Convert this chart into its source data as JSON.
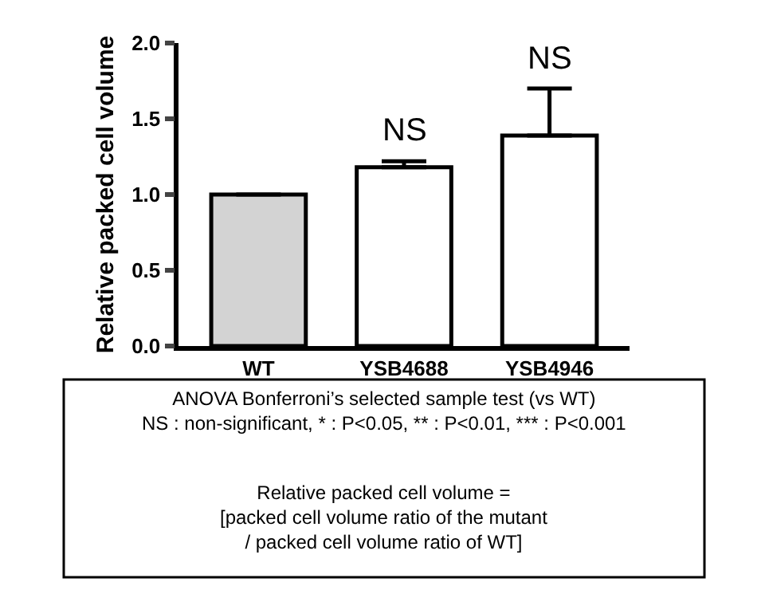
{
  "chart_data": {
    "type": "bar",
    "ylabel": "Relative packed cell volume",
    "categories": [
      "WT",
      "YSB4688",
      "YSB4946"
    ],
    "values": [
      1.0,
      1.18,
      1.39
    ],
    "colors": [
      "#d3d3d3",
      "#ffffff",
      "#ffffff"
    ],
    "errors": [
      null,
      [
        1.18,
        1.22
      ],
      [
        1.39,
        1.7
      ]
    ],
    "ylim": [
      0,
      2.0
    ],
    "yticks": [
      {
        "value": 0,
        "label": "0.0"
      },
      {
        "value": 0.5,
        "label": "0.5"
      },
      {
        "value": 1,
        "label": "1.0"
      },
      {
        "value": 1.5,
        "label": "1.5"
      },
      {
        "value": 2,
        "label": "2.0"
      }
    ],
    "annotations": [
      {
        "text": "NS",
        "x": "YSB4688",
        "y": 1.22
      },
      {
        "text": "NS",
        "x": "YSB4946",
        "y": 1.7
      },
      "ANOVA Bonferroni’s selected sample test (vs WT)\nNS : non-significant, * : P<0.05, ** : P<0.01, *** : P<0.001",
      "Relative packed cell volume =\n[packed cell volume ratio of the mutant\n/ packed cell volume ratio of WT]"
    ]
  }
}
